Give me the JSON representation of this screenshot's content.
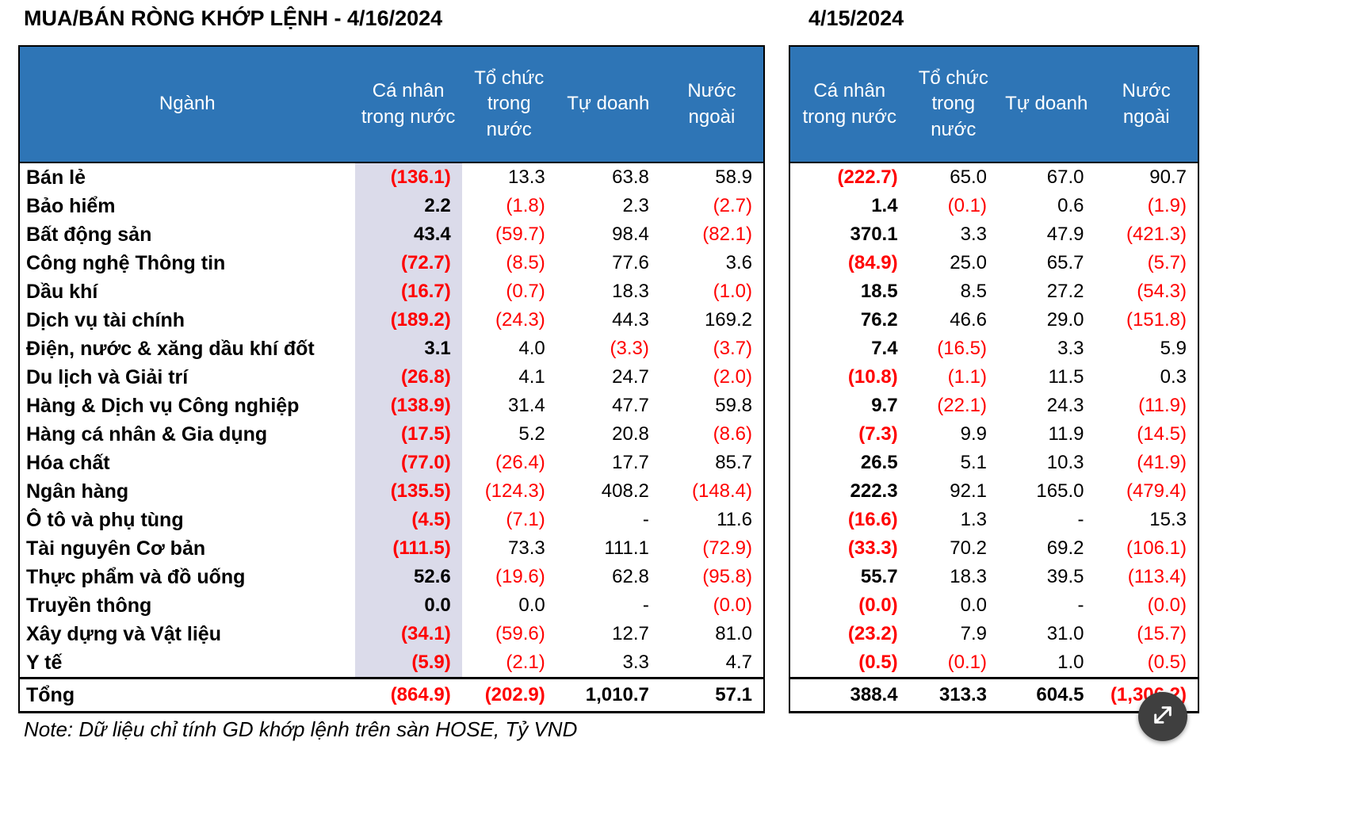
{
  "page": {
    "title_left": "MUA/BÁN RÒNG KHỚP LỆNH - 4/16/2024",
    "title_right": "4/15/2024",
    "note": "Note: Dữ liệu chỉ tính GD khớp lệnh trên sàn HOSE, Tỷ VND"
  },
  "colors": {
    "header_bg": "#2E75B6",
    "negative": "#FF0000",
    "shaded_column": "#DBDBEA",
    "fab_bg": "#3F3F3F"
  },
  "icons": {
    "fab": "expand-icon"
  },
  "chart_data": {
    "type": "table",
    "title": "MUA/BÁN RÒNG KHỚP LỆNH - 4/16/2024",
    "date_left": "4/16/2024",
    "date_right": "4/15/2024",
    "unit": "Tỷ VND",
    "columns_left": [
      "Ngành",
      "Cá nhân trong nước",
      "Tổ chức trong nước",
      "Tự doanh",
      "Nước ngoài"
    ],
    "columns_right": [
      "Cá nhân trong nước",
      "Tổ chức trong nước",
      "Tự doanh",
      "Nước ngoài"
    ],
    "rows": [
      {
        "name": "Bán lẻ",
        "left": [
          "(136.1)",
          "13.3",
          "63.8",
          "58.9"
        ],
        "right": [
          "(222.7)",
          "65.0",
          "67.0",
          "90.7"
        ]
      },
      {
        "name": "Bảo hiểm",
        "left": [
          "2.2",
          "(1.8)",
          "2.3",
          "(2.7)"
        ],
        "right": [
          "1.4",
          "(0.1)",
          "0.6",
          "(1.9)"
        ]
      },
      {
        "name": "Bất động sản",
        "left": [
          "43.4",
          "(59.7)",
          "98.4",
          "(82.1)"
        ],
        "right": [
          "370.1",
          "3.3",
          "47.9",
          "(421.3)"
        ]
      },
      {
        "name": "Công nghệ Thông tin",
        "left": [
          "(72.7)",
          "(8.5)",
          "77.6",
          "3.6"
        ],
        "right": [
          "(84.9)",
          "25.0",
          "65.7",
          "(5.7)"
        ]
      },
      {
        "name": "Dầu khí",
        "left": [
          "(16.7)",
          "(0.7)",
          "18.3",
          "(1.0)"
        ],
        "right": [
          "18.5",
          "8.5",
          "27.2",
          "(54.3)"
        ]
      },
      {
        "name": "Dịch vụ tài chính",
        "left": [
          "(189.2)",
          "(24.3)",
          "44.3",
          "169.2"
        ],
        "right": [
          "76.2",
          "46.6",
          "29.0",
          "(151.8)"
        ]
      },
      {
        "name": "Điện, nước & xăng dầu khí đốt",
        "left": [
          "3.1",
          "4.0",
          "(3.3)",
          "(3.7)"
        ],
        "right": [
          "7.4",
          "(16.5)",
          "3.3",
          "5.9"
        ]
      },
      {
        "name": "Du lịch và Giải trí",
        "left": [
          "(26.8)",
          "4.1",
          "24.7",
          "(2.0)"
        ],
        "right": [
          "(10.8)",
          "(1.1)",
          "11.5",
          "0.3"
        ]
      },
      {
        "name": "Hàng & Dịch vụ Công nghiệp",
        "left": [
          "(138.9)",
          "31.4",
          "47.7",
          "59.8"
        ],
        "right": [
          "9.7",
          "(22.1)",
          "24.3",
          "(11.9)"
        ]
      },
      {
        "name": "Hàng cá nhân & Gia dụng",
        "left": [
          "(17.5)",
          "5.2",
          "20.8",
          "(8.6)"
        ],
        "right": [
          "(7.3)",
          "9.9",
          "11.9",
          "(14.5)"
        ]
      },
      {
        "name": "Hóa chất",
        "left": [
          "(77.0)",
          "(26.4)",
          "17.7",
          "85.7"
        ],
        "right": [
          "26.5",
          "5.1",
          "10.3",
          "(41.9)"
        ]
      },
      {
        "name": "Ngân hàng",
        "left": [
          "(135.5)",
          "(124.3)",
          "408.2",
          "(148.4)"
        ],
        "right": [
          "222.3",
          "92.1",
          "165.0",
          "(479.4)"
        ]
      },
      {
        "name": "Ô tô và phụ tùng",
        "left": [
          "(4.5)",
          "(7.1)",
          "-",
          "11.6"
        ],
        "right": [
          "(16.6)",
          "1.3",
          "-",
          "15.3"
        ]
      },
      {
        "name": "Tài nguyên Cơ bản",
        "left": [
          "(111.5)",
          "73.3",
          "111.1",
          "(72.9)"
        ],
        "right": [
          "(33.3)",
          "70.2",
          "69.2",
          "(106.1)"
        ]
      },
      {
        "name": "Thực phẩm và đồ uống",
        "left": [
          "52.6",
          "(19.6)",
          "62.8",
          "(95.8)"
        ],
        "right": [
          "55.7",
          "18.3",
          "39.5",
          "(113.4)"
        ]
      },
      {
        "name": "Truyền thông",
        "left": [
          "0.0",
          "0.0",
          "-",
          "(0.0)"
        ],
        "right": [
          "(0.0)",
          "0.0",
          "-",
          "(0.0)"
        ]
      },
      {
        "name": "Xây dựng và Vật liệu",
        "left": [
          "(34.1)",
          "(59.6)",
          "12.7",
          "81.0"
        ],
        "right": [
          "(23.2)",
          "7.9",
          "31.0",
          "(15.7)"
        ]
      },
      {
        "name": "Y tế",
        "left": [
          "(5.9)",
          "(2.1)",
          "3.3",
          "4.7"
        ],
        "right": [
          "(0.5)",
          "(0.1)",
          "1.0",
          "(0.5)"
        ]
      }
    ],
    "total": {
      "name": "Tổng",
      "left": [
        "(864.9)",
        "(202.9)",
        "1,010.7",
        "57.1"
      ],
      "right": [
        "388.4",
        "313.3",
        "604.5",
        "(1,306.2)"
      ]
    }
  }
}
